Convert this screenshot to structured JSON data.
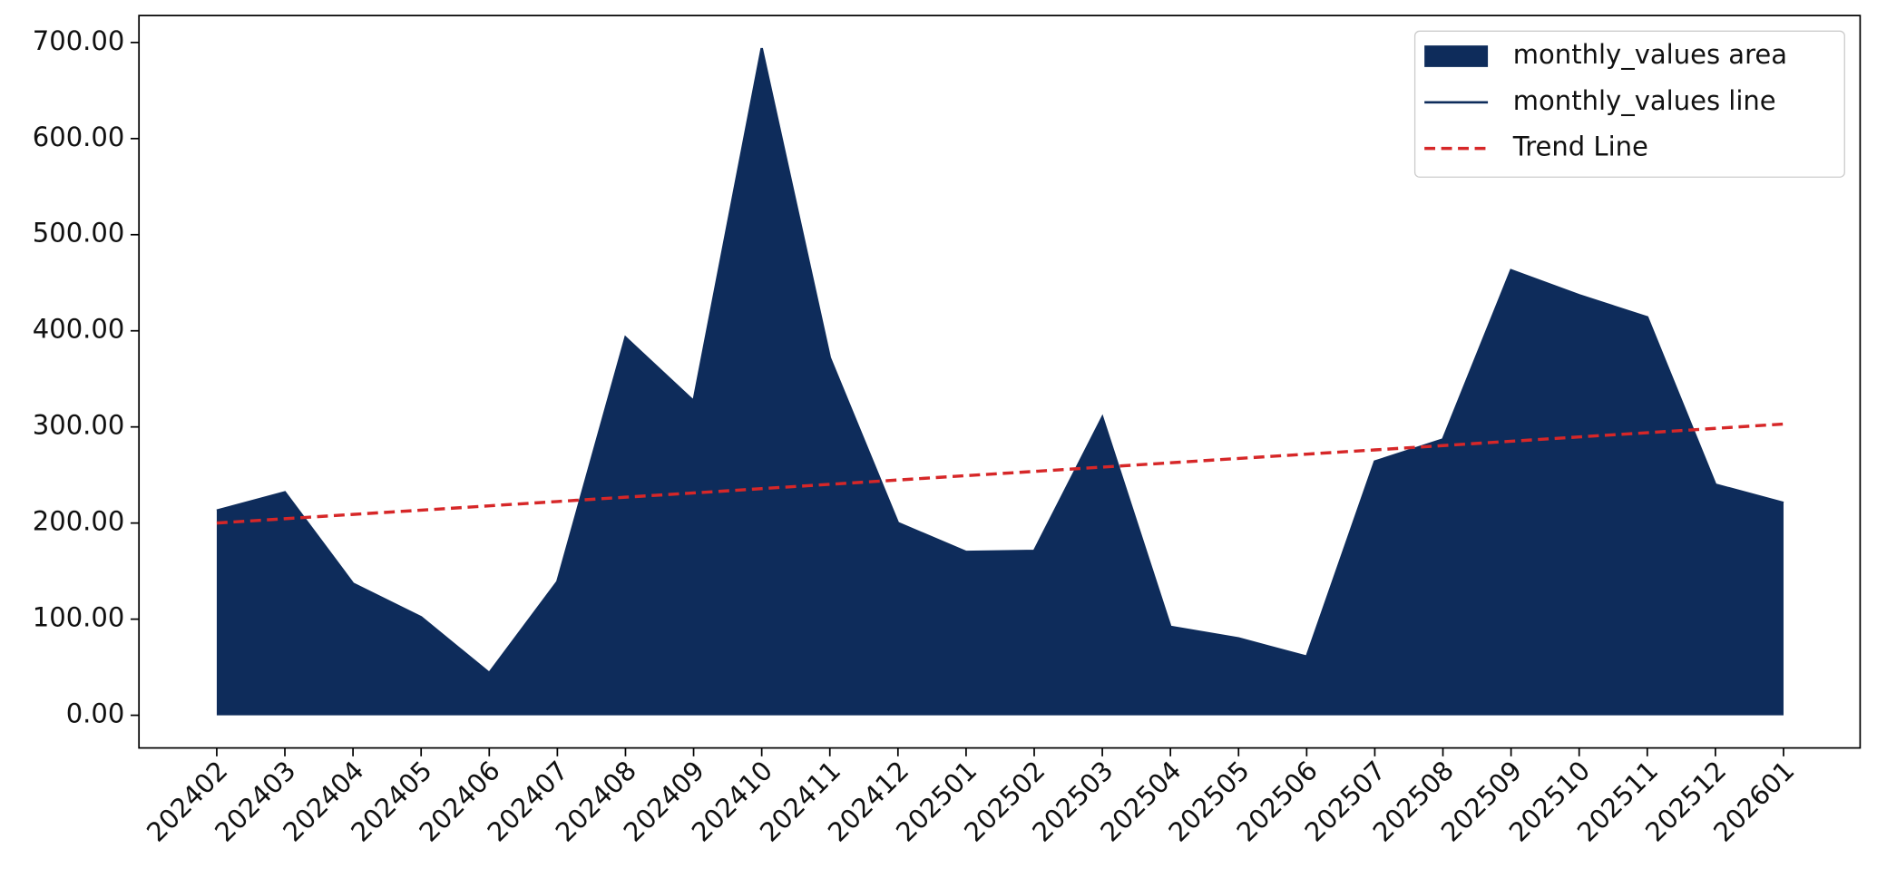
{
  "chart_data": {
    "type": "area",
    "categories": [
      "202402",
      "202403",
      "202404",
      "202405",
      "202406",
      "202407",
      "202408",
      "202409",
      "202410",
      "202411",
      "202412",
      "202501",
      "202502",
      "202503",
      "202504",
      "202505",
      "202506",
      "202507",
      "202508",
      "202509",
      "202510",
      "202511",
      "202512",
      "202601"
    ],
    "series": [
      {
        "name": "monthly_values area",
        "color": "#0e2c5b",
        "values": [
          213,
          232,
          137,
          102,
          44,
          139,
          393,
          327,
          694,
          372,
          200,
          170,
          171,
          310,
          92,
          80,
          61,
          264,
          287,
          463,
          437,
          414,
          240,
          221
        ]
      },
      {
        "name": "monthly_values line",
        "color": "#0e2c5b",
        "values": [
          213,
          232,
          137,
          102,
          44,
          139,
          393,
          327,
          694,
          372,
          200,
          170,
          171,
          310,
          92,
          80,
          61,
          264,
          287,
          463,
          437,
          414,
          240,
          221
        ]
      },
      {
        "name": "Trend Line",
        "color": "#d62728",
        "dashed": true,
        "values": [
          200,
          204.5,
          209,
          213.4,
          217.9,
          222.4,
          226.9,
          231.3,
          235.8,
          240.3,
          244.8,
          249.3,
          253.7,
          258.2,
          262.7,
          267.2,
          271.7,
          276.1,
          280.6,
          285.1,
          289.6,
          294,
          298.5,
          303
        ]
      }
    ],
    "ylim": [
      -34,
      728
    ],
    "yticks": [
      {
        "value": 0,
        "label": "0.00"
      },
      {
        "value": 100,
        "label": "100.00"
      },
      {
        "value": 200,
        "label": "200.00"
      },
      {
        "value": 300,
        "label": "300.00"
      },
      {
        "value": 400,
        "label": "400.00"
      },
      {
        "value": 500,
        "label": "500.00"
      },
      {
        "value": 600,
        "label": "600.00"
      },
      {
        "value": 700,
        "label": "700.00"
      }
    ],
    "grid": false,
    "legend": "upper right"
  }
}
